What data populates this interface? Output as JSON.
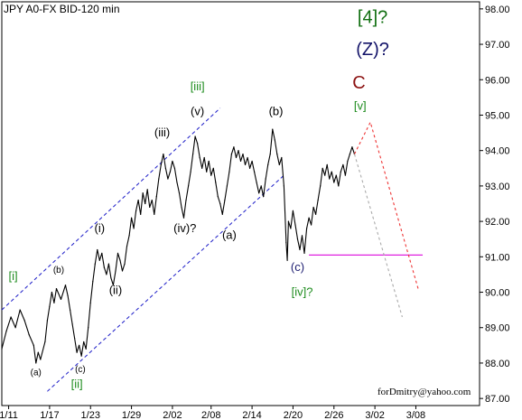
{
  "chart_data": {
    "type": "line",
    "title": "JPY A0-FX BID-120 min",
    "watermark": "forDmitry@yahoo.com",
    "ylim": [
      86.8,
      98.2
    ],
    "xlim": [
      0,
      21
    ],
    "y_ticks": [
      "98.00",
      "97.00",
      "96.00",
      "95.00",
      "94.00",
      "93.00",
      "92.00",
      "91.00",
      "90.00",
      "89.00",
      "88.00",
      "87.00"
    ],
    "y_tick_values": [
      98,
      97,
      96,
      95,
      94,
      93,
      92,
      91,
      90,
      89,
      88,
      87
    ],
    "x_ticks": [
      "1/11",
      "1/17",
      "1/23",
      "1/29",
      "2/02",
      "2/08",
      "2/14",
      "2/20",
      "2/26",
      "3/02",
      "3/08"
    ],
    "x_tick_values": [
      0.3,
      2.1,
      3.9,
      5.7,
      7.5,
      9.2,
      11.0,
      12.8,
      14.6,
      16.4,
      18.2
    ],
    "series": [
      {
        "color": "#000000",
        "points": [
          [
            0,
            88.4
          ],
          [
            0.2,
            88.9
          ],
          [
            0.4,
            89.3
          ],
          [
            0.6,
            89.0
          ],
          [
            0.8,
            89.5
          ],
          [
            1.0,
            89.2
          ],
          [
            1.2,
            88.8
          ],
          [
            1.4,
            88.5
          ],
          [
            1.5,
            88.0
          ],
          [
            1.6,
            88.3
          ],
          [
            1.7,
            88.1
          ],
          [
            1.9,
            88.6
          ],
          [
            2.0,
            89.2
          ],
          [
            2.1,
            89.6
          ],
          [
            2.2,
            90.0
          ],
          [
            2.3,
            89.7
          ],
          [
            2.4,
            90.1
          ],
          [
            2.6,
            89.8
          ],
          [
            2.8,
            90.2
          ],
          [
            2.9,
            89.9
          ],
          [
            3.0,
            89.5
          ],
          [
            3.1,
            89.1
          ],
          [
            3.2,
            88.7
          ],
          [
            3.3,
            88.3
          ],
          [
            3.4,
            88.5
          ],
          [
            3.5,
            88.2
          ],
          [
            3.6,
            88.6
          ],
          [
            3.7,
            88.4
          ],
          [
            3.8,
            89.0
          ],
          [
            3.9,
            89.7
          ],
          [
            4.0,
            90.3
          ],
          [
            4.1,
            90.8
          ],
          [
            4.2,
            91.2
          ],
          [
            4.3,
            90.9
          ],
          [
            4.4,
            91.1
          ],
          [
            4.5,
            90.7
          ],
          [
            4.6,
            90.5
          ],
          [
            4.7,
            90.8
          ],
          [
            4.8,
            90.4
          ],
          [
            4.9,
            90.2
          ],
          [
            5.0,
            90.6
          ],
          [
            5.1,
            91.1
          ],
          [
            5.2,
            90.9
          ],
          [
            5.3,
            90.6
          ],
          [
            5.4,
            90.8
          ],
          [
            5.5,
            91.3
          ],
          [
            5.6,
            91.6
          ],
          [
            5.7,
            92.1
          ],
          [
            5.8,
            91.8
          ],
          [
            5.9,
            92.3
          ],
          [
            6.0,
            92.6
          ],
          [
            6.1,
            92.2
          ],
          [
            6.2,
            92.8
          ],
          [
            6.3,
            92.5
          ],
          [
            6.4,
            92.9
          ],
          [
            6.5,
            92.4
          ],
          [
            6.6,
            92.6
          ],
          [
            6.7,
            92.2
          ],
          [
            6.8,
            92.7
          ],
          [
            6.9,
            93.2
          ],
          [
            7.0,
            93.6
          ],
          [
            7.1,
            93.9
          ],
          [
            7.2,
            93.5
          ],
          [
            7.3,
            93.2
          ],
          [
            7.4,
            93.4
          ],
          [
            7.5,
            93.7
          ],
          [
            7.6,
            93.5
          ],
          [
            7.7,
            93.1
          ],
          [
            7.8,
            92.8
          ],
          [
            7.9,
            92.4
          ],
          [
            8.0,
            92.1
          ],
          [
            8.1,
            92.6
          ],
          [
            8.2,
            93.0
          ],
          [
            8.3,
            93.4
          ],
          [
            8.4,
            93.9
          ],
          [
            8.5,
            94.4
          ],
          [
            8.6,
            94.2
          ],
          [
            8.7,
            93.8
          ],
          [
            8.8,
            93.5
          ],
          [
            8.9,
            93.8
          ],
          [
            9.0,
            93.4
          ],
          [
            9.1,
            93.7
          ],
          [
            9.2,
            93.3
          ],
          [
            9.3,
            93.5
          ],
          [
            9.4,
            93.1
          ],
          [
            9.5,
            92.7
          ],
          [
            9.6,
            92.5
          ],
          [
            9.7,
            92.2
          ],
          [
            9.8,
            92.6
          ],
          [
            9.9,
            93.0
          ],
          [
            10.0,
            93.4
          ],
          [
            10.1,
            93.9
          ],
          [
            10.2,
            94.1
          ],
          [
            10.3,
            93.8
          ],
          [
            10.4,
            94.0
          ],
          [
            10.5,
            93.7
          ],
          [
            10.6,
            93.9
          ],
          [
            10.7,
            93.6
          ],
          [
            10.8,
            93.8
          ],
          [
            10.9,
            93.5
          ],
          [
            11.0,
            93.7
          ],
          [
            11.1,
            93.4
          ],
          [
            11.2,
            93.1
          ],
          [
            11.3,
            92.8
          ],
          [
            11.4,
            93.0
          ],
          [
            11.5,
            92.7
          ],
          [
            11.6,
            93.2
          ],
          [
            11.7,
            93.6
          ],
          [
            11.8,
            93.9
          ],
          [
            11.9,
            94.6
          ],
          [
            12.0,
            94.3
          ],
          [
            12.1,
            93.9
          ],
          [
            12.2,
            93.6
          ],
          [
            12.3,
            93.8
          ],
          [
            12.4,
            93.0
          ],
          [
            12.5,
            91.4
          ],
          [
            12.55,
            90.9
          ],
          [
            12.6,
            92.0
          ],
          [
            12.7,
            91.8
          ],
          [
            12.8,
            92.3
          ],
          [
            12.9,
            91.9
          ],
          [
            13.0,
            91.5
          ],
          [
            13.1,
            91.2
          ],
          [
            13.2,
            91.6
          ],
          [
            13.3,
            91.1
          ],
          [
            13.4,
            91.8
          ],
          [
            13.5,
            92.1
          ],
          [
            13.6,
            91.9
          ],
          [
            13.7,
            92.4
          ],
          [
            13.8,
            92.2
          ],
          [
            13.9,
            92.6
          ],
          [
            14.0,
            93.0
          ],
          [
            14.1,
            93.5
          ],
          [
            14.2,
            93.3
          ],
          [
            14.3,
            93.6
          ],
          [
            14.4,
            93.2
          ],
          [
            14.5,
            93.4
          ],
          [
            14.6,
            93.1
          ],
          [
            14.7,
            93.3
          ],
          [
            14.8,
            93.0
          ],
          [
            14.9,
            93.4
          ],
          [
            15.0,
            93.6
          ],
          [
            15.1,
            93.3
          ],
          [
            15.2,
            93.7
          ],
          [
            15.3,
            93.9
          ],
          [
            15.4,
            94.1
          ],
          [
            15.5,
            93.9
          ]
        ]
      }
    ],
    "channel": {
      "color": "#1c1cc8",
      "lines": [
        [
          [
            0,
            89.5
          ],
          [
            9.6,
            95.2
          ]
        ],
        [
          [
            2.0,
            87.2
          ],
          [
            12.4,
            93.3
          ]
        ]
      ]
    },
    "support": {
      "color": "#e020e0",
      "y": 91.05,
      "x1": 13.5,
      "x2": 18.5
    },
    "projections": [
      {
        "color": "#ee3333",
        "points": [
          [
            15.5,
            93.9
          ],
          [
            16.2,
            94.8
          ],
          [
            18.3,
            90.1
          ]
        ]
      },
      {
        "color": "#aaaaaa",
        "points": [
          [
            15.5,
            93.9
          ],
          [
            17.6,
            89.3
          ]
        ]
      }
    ],
    "annotations": [
      {
        "text": "[4]?",
        "x": 16.3,
        "y": 97.6,
        "color": "#0f6e0f",
        "size": 20
      },
      {
        "text": "(Z)?",
        "x": 16.3,
        "y": 96.7,
        "color": "#121268",
        "size": 20
      },
      {
        "text": "C",
        "x": 15.7,
        "y": 95.75,
        "color": "#8b1111",
        "size": 20
      },
      {
        "text": "[v]",
        "x": 15.75,
        "y": 95.15,
        "color": "#1e8c1e",
        "size": 13
      },
      {
        "text": "(b)",
        "x": 12.05,
        "y": 95.0,
        "color": "#000000",
        "size": 13
      },
      {
        "text": "(v)",
        "x": 8.6,
        "y": 95.0,
        "color": "#000000",
        "size": 13
      },
      {
        "text": "[iii]",
        "x": 8.6,
        "y": 95.7,
        "color": "#1e8c1e",
        "size": 13
      },
      {
        "text": "(iii)",
        "x": 7.05,
        "y": 94.4,
        "color": "#000000",
        "size": 13
      },
      {
        "text": "(iv)?",
        "x": 8.05,
        "y": 91.7,
        "color": "#000000",
        "size": 13
      },
      {
        "text": "(a)",
        "x": 10.0,
        "y": 91.5,
        "color": "#000000",
        "size": 13
      },
      {
        "text": "(c)",
        "x": 13.0,
        "y": 90.6,
        "color": "#1c1c70",
        "size": 13
      },
      {
        "text": "[iv]?",
        "x": 13.2,
        "y": 89.9,
        "color": "#1e8c1e",
        "size": 13
      },
      {
        "text": "(i)",
        "x": 4.3,
        "y": 91.7,
        "color": "#000000",
        "size": 13
      },
      {
        "text": "(ii)",
        "x": 5.0,
        "y": 89.95,
        "color": "#000000",
        "size": 13
      },
      {
        "text": "[i]",
        "x": 0.5,
        "y": 90.35,
        "color": "#1e8c1e",
        "size": 13
      },
      {
        "text": "(b)",
        "x": 2.5,
        "y": 90.55,
        "color": "#000000",
        "size": 10
      },
      {
        "text": "(a)",
        "x": 1.5,
        "y": 87.65,
        "color": "#000000",
        "size": 10
      },
      {
        "text": "(c)",
        "x": 3.45,
        "y": 87.75,
        "color": "#000000",
        "size": 10
      },
      {
        "text": "[ii]",
        "x": 3.3,
        "y": 87.3,
        "color": "#1e8c1e",
        "size": 13
      }
    ]
  }
}
